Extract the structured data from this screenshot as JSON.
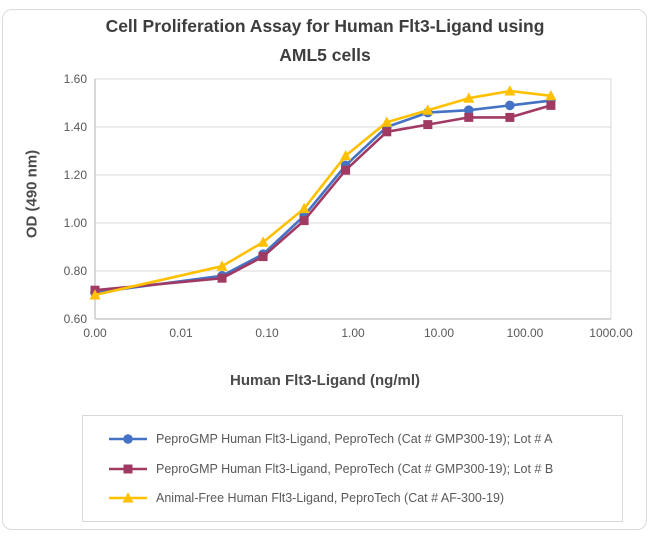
{
  "header": {
    "title_line1": "Cell Proliferation Assay for Human Flt3-Ligand using",
    "title_line2": "AML5 cells"
  },
  "chart_data": {
    "type": "line",
    "title": "Cell Proliferation Assay for Human Flt3-Ligand using AML5 cells",
    "xlabel": "Human Flt3-Ligand (ng/ml)",
    "ylabel": "OD (490 nm)",
    "x_scale": "log",
    "x": [
      0,
      0.03,
      0.09,
      0.27,
      0.82,
      2.47,
      7.41,
      22.2,
      66.7,
      200
    ],
    "series": [
      {
        "id": "lot-a",
        "name": "PeproGMP Human Flt3-Ligand, PeproTech (Cat # GMP300-19); Lot # A",
        "color": "#4472C4",
        "marker": "circle",
        "values": [
          0.71,
          0.78,
          0.87,
          1.03,
          1.24,
          1.4,
          1.46,
          1.47,
          1.49,
          1.51
        ]
      },
      {
        "id": "lot-b",
        "name": "PeproGMP Human Flt3-Ligand, PeproTech (Cat # GMP300-19); Lot # B",
        "color": "#A13A63",
        "marker": "square",
        "values": [
          0.72,
          0.77,
          0.86,
          1.01,
          1.22,
          1.38,
          1.41,
          1.44,
          1.44,
          1.49
        ]
      },
      {
        "id": "animal-free",
        "name": "Animal-Free Human Flt3-Ligand, PeproTech (Cat # AF-300-19)",
        "color": "#FFC000",
        "marker": "triangle",
        "values": [
          0.7,
          0.82,
          0.92,
          1.06,
          1.28,
          1.42,
          1.47,
          1.52,
          1.55,
          1.53
        ]
      }
    ],
    "ylim": [
      0.6,
      1.6
    ],
    "y_ticks": [
      0.6,
      0.8,
      1.0,
      1.2,
      1.4,
      1.6
    ],
    "y_tick_labels": [
      "0.60",
      "0.80",
      "1.00",
      "1.20",
      "1.40",
      "1.60"
    ],
    "x_tick_values": [
      0.001,
      0.01,
      0.1,
      1,
      10,
      100,
      1000
    ],
    "x_tick_labels": [
      "0.00",
      "0.01",
      "0.10",
      "1.00",
      "10.00",
      "100.00",
      "1000.00"
    ],
    "grid": "horizontal-only",
    "legend_position": "bottom"
  },
  "colors": {
    "gridline": "#D9D9D9",
    "axis_line": "#BFBFBF",
    "plot_border": "#D9D9D9",
    "title_text": "#3D3D3D",
    "tick_text": "#595959",
    "legend_text": "#595959",
    "series_lot_a": "#4472C4",
    "series_lot_b": "#A13A63",
    "series_animal_free": "#FFC000"
  }
}
